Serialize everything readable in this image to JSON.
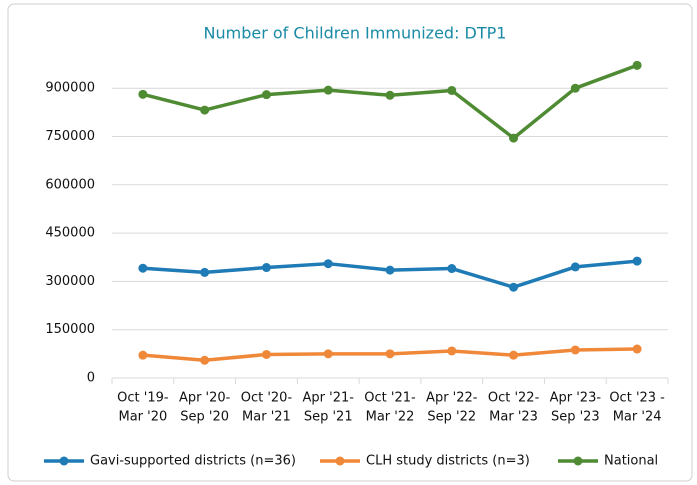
{
  "chart_data": {
    "type": "line",
    "title": "Number of Children Immunized: DTP1",
    "categories": [
      [
        "Oct '19-",
        "Mar '20"
      ],
      [
        "Apr '20-",
        "Sep '20"
      ],
      [
        "Oct '20-",
        "Mar '21"
      ],
      [
        "Apr '21-",
        "Sep '21"
      ],
      [
        "Oct '21-",
        "Mar '22"
      ],
      [
        "Apr '22-",
        "Sep '22"
      ],
      [
        "Oct '22-",
        "Mar '23"
      ],
      [
        "Apr '23-",
        "Sep '23"
      ],
      [
        "Oct '23 -",
        "Mar '24"
      ]
    ],
    "series": [
      {
        "name": "Gavi-supported districts (n=36)",
        "color": "#1f7bb5",
        "values": [
          341000,
          328000,
          343000,
          355000,
          335000,
          340000,
          282000,
          345000,
          363000
        ]
      },
      {
        "name": "CLH study districts (n=3)",
        "color": "#f0883a",
        "values": [
          71000,
          55000,
          73000,
          75000,
          75000,
          84000,
          71000,
          87000,
          90000
        ]
      },
      {
        "name": "National",
        "color": "#4e8b33",
        "values": [
          881000,
          832000,
          880000,
          894000,
          878000,
          893000,
          745000,
          900000,
          971000
        ]
      }
    ],
    "ylim": [
      0,
      1000000
    ],
    "yticks": [
      0,
      150000,
      300000,
      450000,
      600000,
      750000,
      900000
    ],
    "grid": true,
    "legend": "bottom"
  }
}
